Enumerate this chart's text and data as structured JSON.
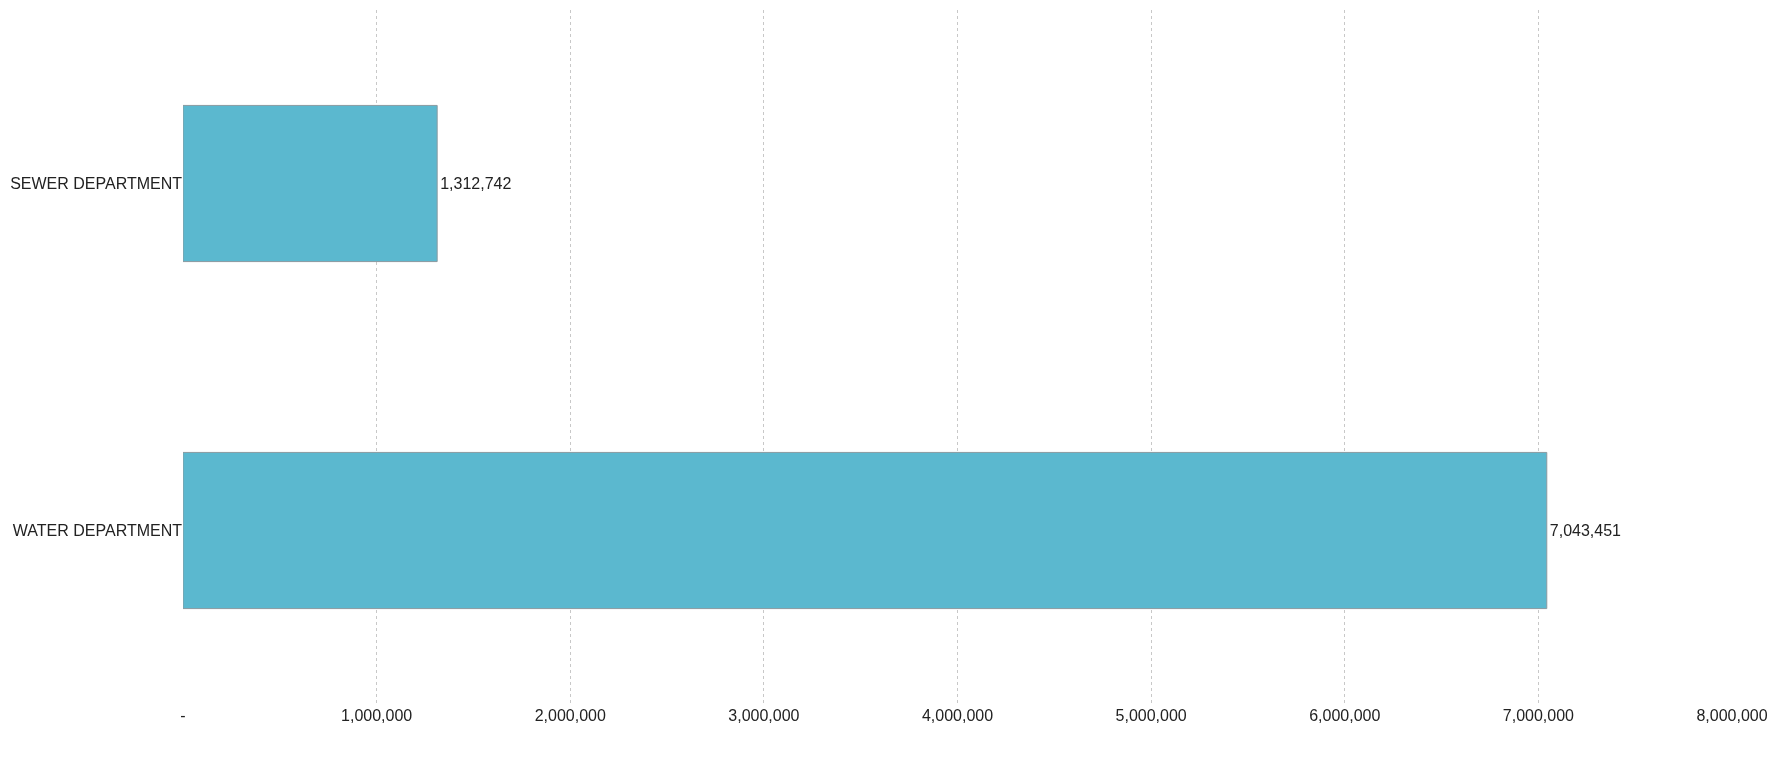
{
  "chart_data": {
    "type": "bar",
    "orientation": "horizontal",
    "categories": [
      "SEWER DEPARTMENT",
      "WATER DEPARTMENT"
    ],
    "values": [
      1312742,
      7043451
    ],
    "color": "#5bb8cf",
    "xlim": [
      0,
      8000000
    ],
    "xticks": [
      {
        "value": 0,
        "label": "-"
      },
      {
        "value": 1000000,
        "label": "1,000,000"
      },
      {
        "value": 2000000,
        "label": "2,000,000"
      },
      {
        "value": 3000000,
        "label": "3,000,000"
      },
      {
        "value": 4000000,
        "label": "4,000,000"
      },
      {
        "value": 5000000,
        "label": "5,000,000"
      },
      {
        "value": 6000000,
        "label": "6,000,000"
      },
      {
        "value": 7000000,
        "label": "7,000,000"
      },
      {
        "value": 8000000,
        "label": "8,000,000"
      }
    ],
    "grid": "x",
    "value_labels": [
      "1,312,742",
      "7,043,451"
    ],
    "legend": false
  }
}
